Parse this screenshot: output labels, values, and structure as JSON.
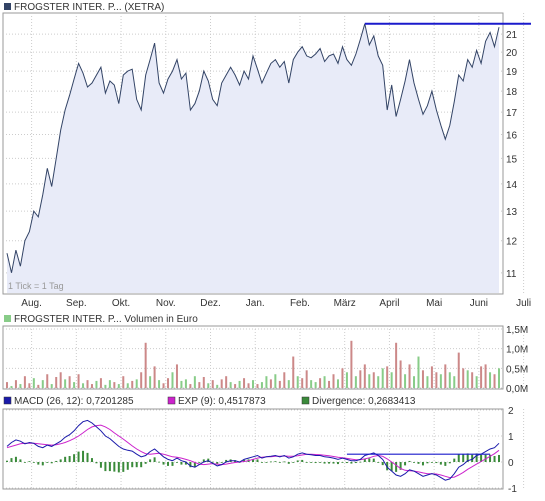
{
  "colors": {
    "price_line": "#334466",
    "price_fill": "#e8ebf8",
    "resistance_line": "#1a1acc",
    "grid": "#cccccc",
    "frame": "#999999",
    "volume_up": "#88cc88",
    "volume_down": "#cc8888",
    "macd_line": "#1a1aaa",
    "exp_line": "#cc22cc",
    "divergence_bar": "#3a8a3a",
    "text": "#333333",
    "note_text": "#999999"
  },
  "chart_data": [
    {
      "type": "line",
      "legend": {
        "label": "FROGSTER INTER. P... (XETRA)",
        "swatch_color": "#334466",
        "placement": "top-left"
      },
      "note": "1 Tick = 1 Tag",
      "months": [
        "Aug.",
        "Sep.",
        "Okt.",
        "Nov.",
        "Dez.",
        "Jan.",
        "Feb.",
        "März",
        "April",
        "Mai",
        "Juni",
        "Juli"
      ],
      "y_scale": "log",
      "ylim": [
        10.5,
        22
      ],
      "y_ticks": [
        11,
        12,
        13,
        14,
        15,
        16,
        17,
        18,
        19,
        20,
        21
      ],
      "x": [
        0,
        0.1,
        0.2,
        0.3,
        0.4,
        0.5,
        0.6,
        0.7,
        0.8,
        0.9,
        1.0,
        1.1,
        1.2,
        1.3,
        1.4,
        1.5,
        1.6,
        1.7,
        1.8,
        1.9,
        2.0,
        2.1,
        2.2,
        2.3,
        2.4,
        2.5,
        2.6,
        2.7,
        2.8,
        2.9,
        3.0,
        3.1,
        3.2,
        3.3,
        3.4,
        3.5,
        3.6,
        3.7,
        3.8,
        3.9,
        4.0,
        4.1,
        4.2,
        4.3,
        4.4,
        4.5,
        4.6,
        4.7,
        4.8,
        4.9,
        5.0,
        5.1,
        5.2,
        5.3,
        5.4,
        5.5,
        5.6,
        5.7,
        5.8,
        5.9,
        6.0,
        6.1,
        6.2,
        6.3,
        6.4,
        6.5,
        6.6,
        6.7,
        6.8,
        6.9,
        7.0,
        7.1,
        7.2,
        7.3,
        7.4,
        7.5,
        7.6,
        7.7,
        7.8,
        7.9,
        8.0,
        8.1,
        8.2,
        8.3,
        8.4,
        8.5,
        8.6,
        8.7,
        8.8,
        8.9,
        9.0,
        9.1,
        9.2,
        9.3,
        9.4,
        9.5,
        9.6,
        9.7,
        9.8,
        9.9,
        10.0,
        10.1,
        10.2,
        10.3,
        10.4,
        10.5,
        10.6,
        10.7,
        10.8,
        10.9,
        11.0
      ],
      "price": [
        11.6,
        11.0,
        11.7,
        11.2,
        12.0,
        12.3,
        13.0,
        12.8,
        13.6,
        14.6,
        13.9,
        15.0,
        16.2,
        17.1,
        17.8,
        18.6,
        19.4,
        18.9,
        18.2,
        18.4,
        18.8,
        19.2,
        17.9,
        18.5,
        18.3,
        17.4,
        18.8,
        19.0,
        19.1,
        17.6,
        17.1,
        18.8,
        19.6,
        20.5,
        18.4,
        17.9,
        18.6,
        19.0,
        19.6,
        18.6,
        18.9,
        17.1,
        17.4,
        18.0,
        19.0,
        18.5,
        17.6,
        17.3,
        18.4,
        18.8,
        19.2,
        18.8,
        18.3,
        19.0,
        18.6,
        19.8,
        19.1,
        18.4,
        18.9,
        19.4,
        19.6,
        19.2,
        19.5,
        18.4,
        19.6,
        20.0,
        20.3,
        19.8,
        19.7,
        19.9,
        20.2,
        19.5,
        19.8,
        19.9,
        19.4,
        20.3,
        19.6,
        19.3,
        19.9,
        20.7,
        21.6,
        20.4,
        20.9,
        19.8,
        19.3,
        17.1,
        18.3,
        16.8,
        17.6,
        18.5,
        19.6,
        18.4,
        17.6,
        16.9,
        17.3,
        18.0,
        17.1,
        16.4,
        15.8,
        16.4,
        17.5,
        18.8,
        18.5,
        19.6,
        19.2,
        20.1,
        19.4,
        20.6,
        21.1,
        20.3,
        21.4
      ],
      "resistance": {
        "value": 21.6,
        "x_start": 8.0,
        "x_end": 11.0,
        "color": "#1a1acc"
      }
    },
    {
      "type": "bar",
      "legend": {
        "label": "FROGSTER INTER. P... Volumen in Euro",
        "swatch_color": "#88cc88",
        "placement": "top-left"
      },
      "ylim": [
        0,
        1.5
      ],
      "y_ticks": [
        0,
        0.5,
        1.0,
        1.5
      ],
      "y_tick_labels": [
        "0,0M",
        "0,5M",
        "1,0M",
        "1,5M"
      ],
      "units": "M",
      "x": [
        0,
        0.1,
        0.2,
        0.3,
        0.4,
        0.5,
        0.6,
        0.7,
        0.8,
        0.9,
        1.0,
        1.1,
        1.2,
        1.3,
        1.4,
        1.5,
        1.6,
        1.7,
        1.8,
        1.9,
        2.0,
        2.1,
        2.2,
        2.3,
        2.4,
        2.5,
        2.6,
        2.7,
        2.8,
        2.9,
        3.0,
        3.1,
        3.2,
        3.3,
        3.4,
        3.5,
        3.6,
        3.7,
        3.8,
        3.9,
        4.0,
        4.1,
        4.2,
        4.3,
        4.4,
        4.5,
        4.6,
        4.7,
        4.8,
        4.9,
        5.0,
        5.1,
        5.2,
        5.3,
        5.4,
        5.5,
        5.6,
        5.7,
        5.8,
        5.9,
        6.0,
        6.1,
        6.2,
        6.3,
        6.4,
        6.5,
        6.6,
        6.7,
        6.8,
        6.9,
        7.0,
        7.1,
        7.2,
        7.3,
        7.4,
        7.5,
        7.6,
        7.7,
        7.8,
        7.9,
        8.0,
        8.1,
        8.2,
        8.3,
        8.4,
        8.5,
        8.6,
        8.7,
        8.8,
        8.9,
        9.0,
        9.1,
        9.2,
        9.3,
        9.4,
        9.5,
        9.6,
        9.7,
        9.8,
        9.9,
        10.0,
        10.1,
        10.2,
        10.3,
        10.4,
        10.5,
        10.6,
        10.7,
        10.8,
        10.9,
        11.0
      ],
      "values": [
        0.15,
        0.05,
        0.2,
        0.1,
        0.3,
        0.12,
        0.25,
        0.08,
        0.2,
        0.35,
        0.1,
        0.28,
        0.4,
        0.22,
        0.3,
        0.15,
        0.35,
        0.12,
        0.2,
        0.1,
        0.18,
        0.25,
        0.08,
        0.2,
        0.15,
        0.1,
        0.3,
        0.12,
        0.18,
        0.22,
        0.4,
        1.15,
        0.3,
        0.55,
        0.2,
        0.12,
        0.25,
        0.4,
        0.6,
        0.18,
        0.22,
        0.1,
        0.3,
        0.15,
        0.28,
        0.12,
        0.2,
        0.08,
        0.22,
        0.3,
        0.15,
        0.1,
        0.18,
        0.25,
        0.12,
        0.2,
        0.1,
        0.15,
        0.3,
        0.22,
        0.35,
        0.18,
        0.4,
        0.2,
        0.8,
        0.3,
        0.25,
        0.45,
        0.2,
        0.15,
        0.25,
        0.3,
        0.18,
        0.35,
        0.22,
        0.5,
        0.4,
        1.2,
        0.3,
        0.45,
        0.6,
        0.35,
        0.4,
        0.3,
        0.5,
        0.55,
        0.4,
        1.15,
        0.7,
        0.35,
        0.6,
        0.3,
        0.8,
        0.45,
        0.3,
        0.55,
        0.4,
        0.35,
        0.6,
        0.4,
        0.3,
        0.9,
        0.5,
        0.45,
        0.4,
        0.3,
        0.55,
        0.6,
        0.4,
        0.35,
        0.5
      ],
      "directions": [
        0,
        1,
        0,
        1,
        0,
        0,
        1,
        0,
        1,
        0,
        1,
        0,
        0,
        1,
        0,
        1,
        0,
        1,
        0,
        0,
        1,
        0,
        1,
        1,
        0,
        1,
        0,
        1,
        0,
        1,
        0,
        0,
        1,
        0,
        1,
        0,
        0,
        1,
        0,
        1,
        1,
        0,
        1,
        0,
        0,
        1,
        0,
        1,
        0,
        0,
        1,
        0,
        1,
        0,
        0,
        1,
        0,
        1,
        1,
        0,
        1,
        0,
        0,
        1,
        0,
        1,
        0,
        0,
        1,
        1,
        0,
        1,
        0,
        0,
        1,
        0,
        1,
        0,
        1,
        0,
        0,
        1,
        0,
        1,
        1,
        0,
        1,
        0,
        0,
        1,
        0,
        1,
        1,
        0,
        1,
        0,
        0,
        1,
        0,
        1,
        1,
        0,
        0,
        1,
        0,
        1,
        0,
        0,
        1,
        0,
        1
      ]
    },
    {
      "type": "line",
      "legend": [
        {
          "label": "MACD (26, 12): 0,7201285",
          "swatch_color": "#1a1aaa"
        },
        {
          "label": "EXP (9): 0,4517873",
          "swatch_color": "#cc22cc"
        },
        {
          "label": "Divergence: 0,2683413",
          "swatch_color": "#3a8a3a"
        }
      ],
      "legend_placement": "top",
      "ylim": [
        -1,
        2
      ],
      "y_ticks": [
        -1,
        0,
        1,
        2
      ],
      "x": [
        0,
        0.1,
        0.2,
        0.3,
        0.4,
        0.5,
        0.6,
        0.7,
        0.8,
        0.9,
        1.0,
        1.1,
        1.2,
        1.3,
        1.4,
        1.5,
        1.6,
        1.7,
        1.8,
        1.9,
        2.0,
        2.1,
        2.2,
        2.3,
        2.4,
        2.5,
        2.6,
        2.7,
        2.8,
        2.9,
        3.0,
        3.1,
        3.2,
        3.3,
        3.4,
        3.5,
        3.6,
        3.7,
        3.8,
        3.9,
        4.0,
        4.1,
        4.2,
        4.3,
        4.4,
        4.5,
        4.6,
        4.7,
        4.8,
        4.9,
        5.0,
        5.1,
        5.2,
        5.3,
        5.4,
        5.5,
        5.6,
        5.7,
        5.8,
        5.9,
        6.0,
        6.1,
        6.2,
        6.3,
        6.4,
        6.5,
        6.6,
        6.7,
        6.8,
        6.9,
        7.0,
        7.1,
        7.2,
        7.3,
        7.4,
        7.5,
        7.6,
        7.7,
        7.8,
        7.9,
        8.0,
        8.1,
        8.2,
        8.3,
        8.4,
        8.5,
        8.6,
        8.7,
        8.8,
        8.9,
        9.0,
        9.1,
        9.2,
        9.3,
        9.4,
        9.5,
        9.6,
        9.7,
        9.8,
        9.9,
        10.0,
        10.1,
        10.2,
        10.3,
        10.4,
        10.5,
        10.6,
        10.7,
        10.8,
        10.9,
        11.0
      ],
      "macd": [
        0.6,
        0.75,
        0.85,
        0.8,
        0.7,
        0.75,
        0.72,
        0.6,
        0.55,
        0.65,
        0.6,
        0.7,
        0.8,
        0.95,
        1.05,
        1.2,
        1.4,
        1.55,
        1.6,
        1.5,
        1.35,
        1.2,
        1.0,
        0.9,
        0.75,
        0.6,
        0.5,
        0.45,
        0.42,
        0.3,
        0.2,
        0.25,
        0.4,
        0.5,
        0.35,
        0.2,
        0.1,
        0.05,
        0.15,
        0.05,
        0.0,
        -0.15,
        -0.2,
        -0.1,
        0.0,
        0.05,
        -0.05,
        -0.15,
        -0.1,
        0.0,
        0.05,
        0.05,
        0.0,
        0.1,
        0.15,
        0.2,
        0.25,
        0.15,
        0.2,
        0.22,
        0.25,
        0.2,
        0.25,
        0.15,
        0.2,
        0.3,
        0.35,
        0.3,
        0.28,
        0.25,
        0.25,
        0.2,
        0.18,
        0.15,
        0.1,
        0.15,
        0.1,
        0.05,
        0.05,
        0.1,
        0.25,
        0.3,
        0.35,
        0.25,
        0.1,
        -0.2,
        -0.35,
        -0.5,
        -0.55,
        -0.45,
        -0.3,
        -0.35,
        -0.45,
        -0.55,
        -0.5,
        -0.45,
        -0.5,
        -0.6,
        -0.7,
        -0.65,
        -0.45,
        -0.2,
        -0.1,
        0.05,
        0.1,
        0.25,
        0.3,
        0.4,
        0.5,
        0.55,
        0.72
      ],
      "exp": [
        0.55,
        0.6,
        0.65,
        0.7,
        0.72,
        0.72,
        0.72,
        0.7,
        0.68,
        0.66,
        0.65,
        0.66,
        0.7,
        0.75,
        0.82,
        0.9,
        1.0,
        1.12,
        1.25,
        1.35,
        1.4,
        1.42,
        1.35,
        1.25,
        1.12,
        1.0,
        0.88,
        0.75,
        0.62,
        0.5,
        0.4,
        0.32,
        0.3,
        0.32,
        0.34,
        0.3,
        0.25,
        0.2,
        0.18,
        0.15,
        0.1,
        0.05,
        -0.02,
        -0.08,
        -0.1,
        -0.08,
        -0.06,
        -0.08,
        -0.1,
        -0.08,
        -0.05,
        -0.02,
        0.0,
        0.02,
        0.05,
        0.1,
        0.15,
        0.18,
        0.2,
        0.2,
        0.22,
        0.22,
        0.23,
        0.22,
        0.22,
        0.24,
        0.27,
        0.3,
        0.3,
        0.29,
        0.28,
        0.26,
        0.24,
        0.21,
        0.18,
        0.16,
        0.14,
        0.11,
        0.09,
        0.09,
        0.12,
        0.16,
        0.22,
        0.25,
        0.22,
        0.12,
        0.0,
        -0.12,
        -0.25,
        -0.32,
        -0.34,
        -0.35,
        -0.38,
        -0.42,
        -0.45,
        -0.45,
        -0.46,
        -0.5,
        -0.55,
        -0.6,
        -0.58,
        -0.5,
        -0.4,
        -0.28,
        -0.18,
        -0.08,
        0.02,
        0.12,
        0.22,
        0.32,
        0.45
      ],
      "divergence": [
        0.05,
        0.15,
        0.2,
        0.1,
        -0.02,
        0.03,
        0.0,
        -0.1,
        -0.13,
        -0.01,
        -0.05,
        0.04,
        0.1,
        0.2,
        0.23,
        0.3,
        0.4,
        0.43,
        0.35,
        0.15,
        -0.05,
        -0.22,
        -0.35,
        -0.35,
        -0.37,
        -0.4,
        -0.38,
        -0.3,
        -0.2,
        -0.2,
        -0.2,
        -0.07,
        0.1,
        0.18,
        0.01,
        -0.1,
        -0.15,
        -0.15,
        -0.03,
        -0.1,
        -0.1,
        -0.2,
        -0.18,
        -0.02,
        0.1,
        0.13,
        0.01,
        -0.07,
        0.0,
        0.08,
        0.1,
        0.07,
        0.0,
        0.08,
        0.1,
        0.1,
        0.1,
        -0.03,
        0.0,
        0.02,
        0.03,
        -0.02,
        0.02,
        -0.07,
        -0.02,
        0.06,
        0.08,
        0.0,
        -0.02,
        -0.04,
        -0.03,
        -0.06,
        -0.06,
        -0.06,
        -0.08,
        -0.01,
        -0.04,
        -0.06,
        -0.04,
        0.01,
        0.13,
        0.14,
        0.13,
        0.0,
        -0.12,
        -0.32,
        -0.35,
        -0.38,
        -0.3,
        -0.13,
        0.04,
        0.0,
        -0.07,
        -0.13,
        -0.05,
        0.0,
        -0.04,
        -0.1,
        -0.15,
        -0.05,
        0.13,
        0.3,
        0.3,
        0.33,
        0.28,
        0.33,
        0.28,
        0.28,
        0.28,
        0.23,
        0.27
      ],
      "trend_line": {
        "x_start": 7.6,
        "x_end": 10.8,
        "value": 0.3,
        "color": "#1a1acc"
      }
    }
  ]
}
